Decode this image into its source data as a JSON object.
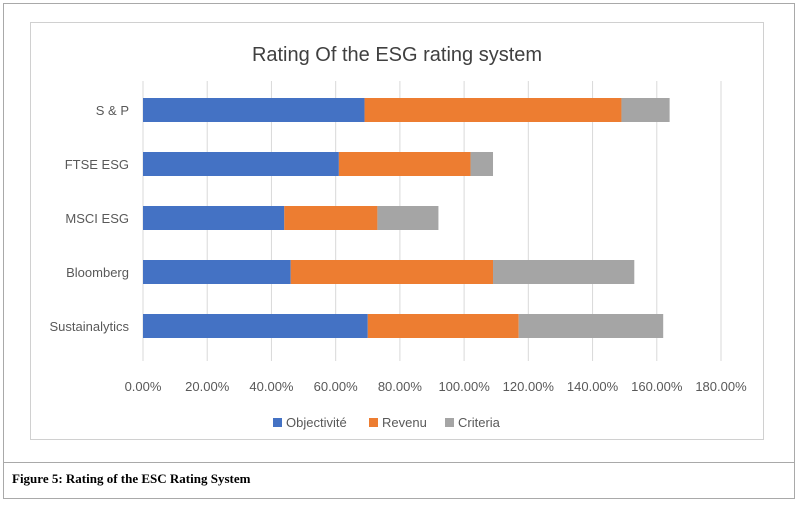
{
  "figure": {
    "caption": "Figure 5: Rating of the ESC Rating System"
  },
  "colors": {
    "Objectivité": "#4472c4",
    "Revenu": "#ed7d31",
    "Criteria": "#a5a5a5",
    "grid": "#d9d9d9",
    "text": "#595959",
    "title": "#404040"
  },
  "chart_data": {
    "type": "bar",
    "orientation": "horizontal",
    "stacked": true,
    "title": "Rating Of the ESG rating system",
    "categories": [
      "S & P",
      "FTSE ESG",
      "MSCI ESG",
      "Bloomberg",
      "Sustainalytics"
    ],
    "series": [
      {
        "name": "Objectivité",
        "values": [
          0.69,
          0.61,
          0.44,
          0.46,
          0.7
        ]
      },
      {
        "name": "Revenu",
        "values": [
          0.8,
          0.41,
          0.29,
          0.63,
          0.47
        ]
      },
      {
        "name": "Criteria",
        "values": [
          0.15,
          0.07,
          0.19,
          0.44,
          0.45
        ]
      }
    ],
    "xlim": [
      0,
      1.8
    ],
    "ticks": [
      "0.00%",
      "20.00%",
      "40.00%",
      "60.00%",
      "80.00%",
      "100.00%",
      "120.00%",
      "140.00%",
      "160.00%",
      "180.00%"
    ],
    "tick_values": [
      0,
      0.2,
      0.4,
      0.6,
      0.8,
      1.0,
      1.2,
      1.4,
      1.6,
      1.8
    ],
    "grid": true,
    "legend": "bottom",
    "xlabel": "",
    "ylabel": ""
  }
}
